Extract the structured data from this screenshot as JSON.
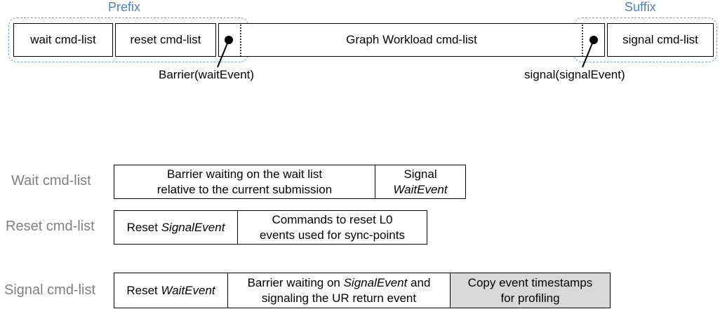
{
  "top": {
    "prefix_label": "Prefix",
    "suffix_label": "Suffix",
    "wait_cmd_list": "wait cmd-list",
    "reset_cmd_list": "reset cmd-list",
    "graph_workload": "Graph Workload cmd-list",
    "signal_cmd_list": "signal cmd-list",
    "barrier_callout": "Barrier(waitEvent)",
    "signal_callout": "signal(signalEvent)"
  },
  "rows": {
    "wait": {
      "label": "Wait cmd-list",
      "cell1_line1": "Barrier waiting on the wait list",
      "cell1_line2": "relative to the current submission",
      "cell2_line1": "Signal",
      "cell2_line2": "WaitEvent"
    },
    "reset": {
      "label": "Reset cmd-list",
      "cell1_prefix": "Reset ",
      "cell1_italic": "SignalEvent",
      "cell2_line1": "Commands to reset L0",
      "cell2_line2": "events used for sync-points"
    },
    "signal": {
      "label": "Signal cmd-list",
      "cell1_prefix": "Reset ",
      "cell1_italic": "WaitEvent",
      "cell2_line1_prefix": "Barrier waiting on ",
      "cell2_line1_italic": "SignalEvent",
      "cell2_line1_suffix": " and",
      "cell2_line2": "signaling the UR return event",
      "cell3_line1": "Copy event timestamps",
      "cell3_line2": "for profiling",
      "cell3_color": "#d9d9d9"
    }
  },
  "colors": {
    "group_label": "#4f81bd",
    "group_border": "#7f9db9",
    "row_label": "#808080"
  }
}
